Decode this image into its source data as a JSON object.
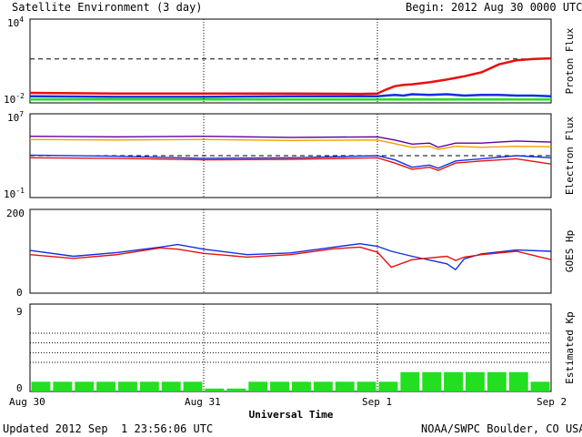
{
  "header": {
    "title": "Satellite Environment (3 day)",
    "begin_label": "Begin:",
    "begin_value": "2012 Aug 30 0000 UTC"
  },
  "footer": {
    "updated": "Updated 2012 Sep  1 23:56:06 UTC",
    "credit": "NOAA/SWPC Boulder, CO USA"
  },
  "x_axis": {
    "label": "Universal Time",
    "ticks": [
      "Aug 30",
      "Aug 31",
      "Sep 1",
      "Sep 2"
    ]
  },
  "colors": {
    "red": "#e81010",
    "blue": "#1030e0",
    "green": "#20e020",
    "orange": "#f0a000",
    "purple": "#6000a0"
  },
  "chart_data": [
    {
      "type": "line",
      "ylabel": "Proton Flux",
      "yscale": "log",
      "ytick_labels": [
        {
          "base": "10",
          "exp": "4"
        },
        {
          "base": "10",
          "exp": "-2"
        }
      ],
      "ylim": [
        -2.3,
        4
      ],
      "threshold": 1,
      "x_days": [
        0,
        0.5,
        1,
        1.5,
        1.9,
        2.0,
        2.05,
        2.1,
        2.15,
        2.2,
        2.3,
        2.4,
        2.5,
        2.6,
        2.7,
        2.8,
        2.9,
        3.0
      ],
      "series": [
        {
          "color": "red",
          "values": [
            -1.55,
            -1.6,
            -1.6,
            -1.6,
            -1.62,
            -1.6,
            -1.3,
            -1.05,
            -0.95,
            -0.9,
            -0.75,
            -0.55,
            -0.3,
            0.0,
            0.6,
            0.9,
            1.0,
            1.05
          ]
        },
        {
          "color": "blue",
          "values": [
            -1.8,
            -1.85,
            -1.85,
            -1.8,
            -1.8,
            -1.8,
            -1.75,
            -1.7,
            -1.75,
            -1.65,
            -1.7,
            -1.65,
            -1.75,
            -1.7,
            -1.7,
            -1.75,
            -1.75,
            -1.8
          ]
        },
        {
          "color": "green",
          "values": [
            -2.05,
            -2.05,
            -2.05,
            -2.05,
            -2.05,
            -2.05,
            -2.05,
            -2.05,
            -2.05,
            -2.05,
            -2.05,
            -2.05,
            -2.05,
            -2.05,
            -2.05,
            -2.05,
            -2.05,
            -2.05
          ]
        }
      ]
    },
    {
      "type": "line",
      "ylabel": "Electron Flux",
      "yscale": "log",
      "ytick_labels": [
        {
          "base": "10",
          "exp": "7"
        },
        {
          "base": "10",
          "exp": "-1"
        }
      ],
      "ylim": [
        -1,
        7
      ],
      "threshold": 3,
      "x_days": [
        0,
        0.5,
        1,
        1.5,
        2.0,
        2.1,
        2.2,
        2.3,
        2.35,
        2.45,
        2.6,
        2.8,
        3.0
      ],
      "series": [
        {
          "color": "purple",
          "values": [
            4.85,
            4.8,
            4.85,
            4.75,
            4.8,
            4.5,
            4.1,
            4.2,
            3.8,
            4.2,
            4.2,
            4.4,
            4.3
          ]
        },
        {
          "color": "orange",
          "values": [
            4.55,
            4.5,
            4.55,
            4.45,
            4.5,
            4.15,
            3.8,
            3.9,
            3.6,
            3.9,
            3.8,
            3.9,
            3.85
          ]
        },
        {
          "color": "blue",
          "values": [
            3.05,
            2.95,
            2.75,
            2.8,
            3.0,
            2.6,
            1.9,
            2.1,
            1.8,
            2.5,
            2.7,
            3.0,
            2.8
          ]
        },
        {
          "color": "red",
          "values": [
            2.8,
            2.75,
            2.6,
            2.65,
            2.8,
            2.3,
            1.7,
            1.9,
            1.6,
            2.3,
            2.5,
            2.7,
            2.2
          ]
        }
      ]
    },
    {
      "type": "line",
      "ylabel": "GOES Hp",
      "ytick_labels": [
        "200",
        "0"
      ],
      "ylim": [
        0,
        200
      ],
      "x_days": [
        0,
        0.25,
        0.5,
        0.75,
        0.85,
        1.0,
        1.25,
        1.5,
        1.75,
        1.9,
        2.0,
        2.08,
        2.2,
        2.4,
        2.45,
        2.5,
        2.6,
        2.8,
        3.0
      ],
      "series": [
        {
          "color": "blue",
          "values": [
            102,
            88,
            97,
            110,
            116,
            105,
            92,
            96,
            110,
            118,
            112,
            100,
            88,
            70,
            56,
            82,
            94,
            103,
            100
          ]
        },
        {
          "color": "red",
          "values": [
            92,
            83,
            92,
            108,
            105,
            95,
            86,
            92,
            106,
            110,
            98,
            62,
            80,
            88,
            78,
            86,
            92,
            100,
            80
          ]
        }
      ]
    },
    {
      "type": "bar",
      "ylabel": "Estimated Kp",
      "ytick_labels": [
        "9",
        "0"
      ],
      "ylim": [
        0,
        9
      ],
      "gridlines": [
        3,
        4,
        5,
        6
      ],
      "color": "green",
      "kp_values": [
        1,
        1,
        1,
        1,
        1,
        1,
        1,
        1,
        0.3,
        0.3,
        1,
        1,
        1,
        1,
        1,
        1,
        1,
        2,
        2,
        2,
        2,
        2,
        2,
        1
      ]
    }
  ]
}
